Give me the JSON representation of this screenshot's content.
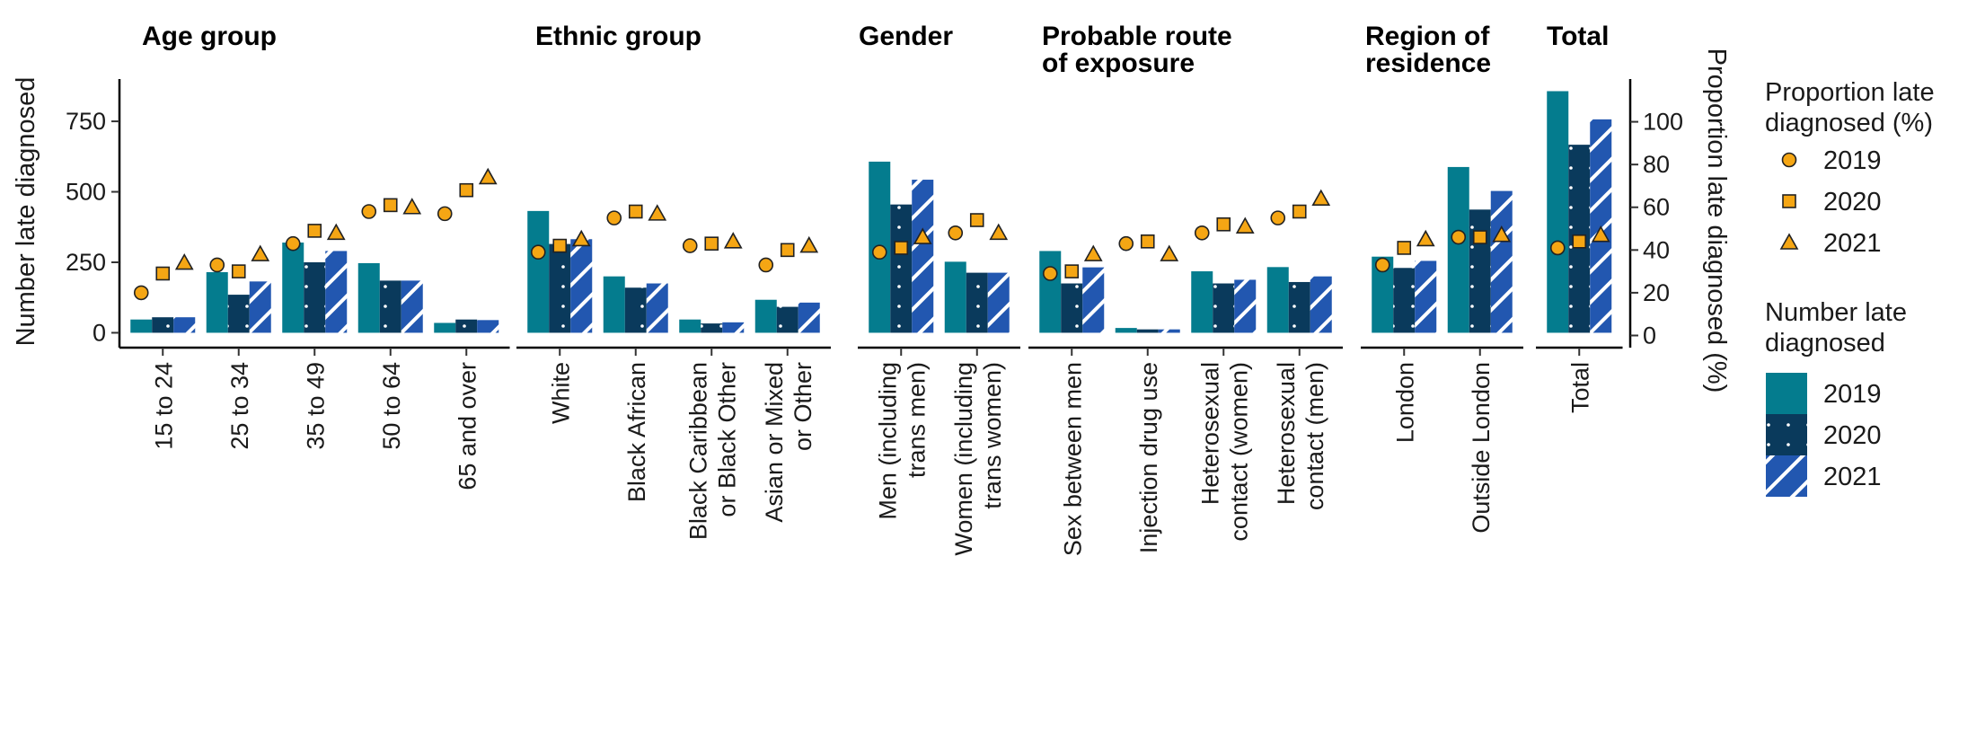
{
  "chart_data": {
    "type": "bar",
    "panels": [
      {
        "title": [
          "Age group"
        ],
        "categories": [
          [
            "15 to 24"
          ],
          [
            "25 to 34"
          ],
          [
            "35 to 49"
          ],
          [
            "50 to 64"
          ],
          [
            "65 and over"
          ]
        ],
        "number": {
          "2019": [
            47,
            215,
            320,
            247,
            35
          ],
          "2020": [
            55,
            135,
            250,
            185,
            47
          ],
          "2021": [
            55,
            182,
            290,
            185,
            45
          ]
        },
        "proportion": {
          "2019": [
            20,
            33,
            43,
            58,
            57
          ],
          "2020": [
            29,
            30,
            49,
            61,
            68
          ],
          "2021": [
            34,
            38,
            48,
            60,
            74
          ]
        }
      },
      {
        "title": [
          "Ethnic group"
        ],
        "categories": [
          [
            "White"
          ],
          [
            "Black African"
          ],
          [
            "Black Caribbean",
            "or Black Other"
          ],
          [
            "Asian or Mixed",
            "or Other"
          ]
        ],
        "number": {
          "2019": [
            432,
            200,
            47,
            117
          ],
          "2020": [
            315,
            160,
            33,
            92
          ],
          "2021": [
            332,
            175,
            37,
            107
          ]
        },
        "proportion": {
          "2019": [
            39,
            55,
            42,
            33
          ],
          "2020": [
            42,
            58,
            43,
            40
          ],
          "2021": [
            45,
            57,
            44,
            42
          ]
        }
      },
      {
        "title": [
          "Gender"
        ],
        "categories": [
          [
            "Men (including",
            "trans men)"
          ],
          [
            "Women (including",
            "trans women)"
          ]
        ],
        "number": {
          "2019": [
            607,
            252
          ],
          "2020": [
            455,
            213
          ],
          "2021": [
            543,
            213
          ]
        },
        "proportion": {
          "2019": [
            39,
            48
          ],
          "2020": [
            41,
            54
          ],
          "2021": [
            46,
            48
          ]
        }
      },
      {
        "title": [
          "Probable route",
          "of exposure"
        ],
        "categories": [
          [
            "Sex between men"
          ],
          [
            "Injection drug use"
          ],
          [
            "Heterosexual",
            "contact (women)"
          ],
          [
            "Heterosexual",
            "contact (men)"
          ]
        ],
        "number": {
          "2019": [
            290,
            17,
            218,
            233
          ],
          "2020": [
            175,
            12,
            175,
            180
          ],
          "2021": [
            232,
            12,
            188,
            200
          ]
        },
        "proportion": {
          "2019": [
            29,
            43,
            48,
            55
          ],
          "2020": [
            30,
            44,
            52,
            58
          ],
          "2021": [
            38,
            38,
            51,
            64
          ]
        }
      },
      {
        "title": [
          "Region of",
          "residence"
        ],
        "categories": [
          [
            "London"
          ],
          [
            "Outside London"
          ]
        ],
        "number": {
          "2019": [
            270,
            588
          ],
          "2020": [
            230,
            437
          ],
          "2021": [
            255,
            503
          ]
        },
        "proportion": {
          "2019": [
            33,
            46
          ],
          "2020": [
            41,
            46
          ],
          "2021": [
            45,
            47
          ]
        }
      },
      {
        "title": [
          "Total"
        ],
        "categories": [
          [
            "Total"
          ]
        ],
        "number": {
          "2019": [
            857
          ],
          "2020": [
            667
          ],
          "2021": [
            757
          ]
        },
        "proportion": {
          "2019": [
            41
          ],
          "2020": [
            44
          ],
          "2021": [
            47
          ]
        }
      }
    ],
    "years": [
      "2019",
      "2020",
      "2021"
    ],
    "ylabel_left": "Number late diagnosed",
    "ylabel_right": "Proportion late diagnosed (%)",
    "yticks_left": [
      0,
      250,
      500,
      750
    ],
    "ylim_left": [
      -40,
      900
    ],
    "yticks_right": [
      0,
      20,
      40,
      60,
      80,
      100
    ],
    "ylim_right": [
      -4,
      120
    ],
    "legend": {
      "position": "right",
      "proportion_title": [
        "Proportion late",
        "diagnosed (%)"
      ],
      "number_title": [
        "Number late",
        "diagnosed"
      ],
      "entries": [
        "2019",
        "2020",
        "2021"
      ]
    },
    "colors": {
      "bar2019": "#047c8e",
      "bar2020": "#0a3a5c",
      "bar2021": "#2257b0",
      "marker": "#f5a614"
    }
  }
}
